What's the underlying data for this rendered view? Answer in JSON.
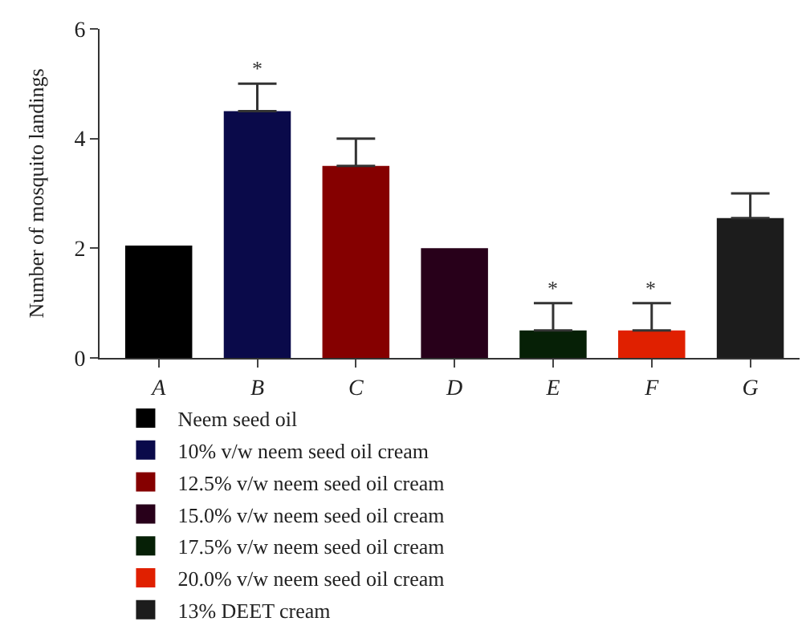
{
  "chart_data": {
    "type": "bar",
    "ylabel": "Number of mosquito landings",
    "categories": [
      "A",
      "B",
      "C",
      "D",
      "E",
      "F",
      "G"
    ],
    "series": [
      {
        "name": "Neem seed oil",
        "color": "#000000",
        "values": [
          2.05,
          null,
          null,
          null,
          null,
          null,
          null
        ]
      },
      {
        "name": "10% v/w neem seed oil cream",
        "color": "#0a0a4a",
        "values": [
          null,
          4.5,
          null,
          null,
          null,
          null,
          null
        ],
        "errors": [
          null,
          [
            4.5,
            5.0
          ],
          null,
          null,
          null,
          null,
          null
        ]
      },
      {
        "name": "12.5% v/w neem seed oil cream",
        "color": "#850000",
        "values": [
          null,
          null,
          3.5,
          null,
          null,
          null,
          null
        ],
        "errors": [
          null,
          null,
          [
            3.5,
            4.0
          ],
          null,
          null,
          null,
          null
        ]
      },
      {
        "name": "15.0% v/w neem seed oil cream",
        "color": "#28001a",
        "values": [
          null,
          null,
          null,
          2.0,
          null,
          null,
          null
        ]
      },
      {
        "name": "17.5% v/w neem seed oil cream",
        "color": "#062006",
        "values": [
          null,
          null,
          null,
          null,
          0.5,
          null,
          null
        ],
        "errors": [
          null,
          null,
          null,
          null,
          [
            0.5,
            1.0
          ],
          null,
          null
        ]
      },
      {
        "name": "20.0% v/w neem seed oil cream",
        "color": "#e02000",
        "values": [
          null,
          null,
          null,
          null,
          null,
          0.5,
          null
        ],
        "errors": [
          null,
          null,
          null,
          null,
          null,
          [
            0.5,
            1.0
          ],
          null
        ]
      },
      {
        "name": "13% DEET cream",
        "color": "#1c1c1c",
        "values": [
          null,
          null,
          null,
          null,
          null,
          null,
          2.55
        ],
        "errors": [
          null,
          null,
          null,
          null,
          null,
          null,
          [
            2.55,
            3.0
          ]
        ]
      }
    ],
    "ylim": [
      0,
      6
    ],
    "yticks": [
      0,
      2,
      4,
      6
    ],
    "grid": false,
    "legend": "bottom",
    "annotations": [
      {
        "text": "*",
        "x": "B",
        "y": 5.0
      },
      {
        "text": "*",
        "x": "E",
        "y": 1.0
      },
      {
        "text": "*",
        "x": "F",
        "y": 1.0
      }
    ]
  }
}
